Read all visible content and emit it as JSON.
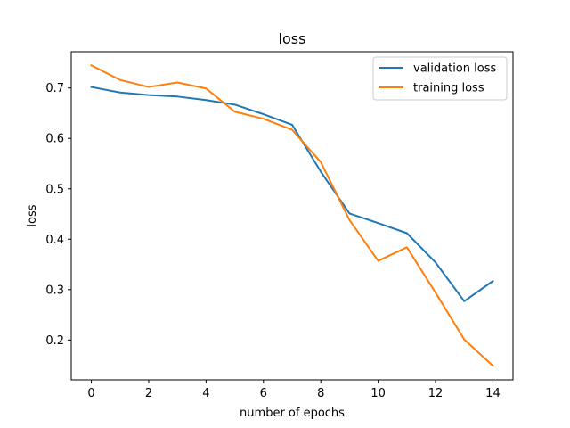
{
  "chart_data": {
    "type": "line",
    "title": "loss",
    "xlabel": "number of epochs",
    "ylabel": "loss",
    "x": [
      0,
      1,
      2,
      3,
      4,
      5,
      6,
      7,
      8,
      9,
      10,
      11,
      12,
      13,
      14
    ],
    "x_ticks": [
      0,
      2,
      4,
      6,
      8,
      10,
      12,
      14
    ],
    "y_ticks": [
      0.2,
      0.3,
      0.4,
      0.5,
      0.6,
      0.7
    ],
    "xlim": [
      -0.7,
      14.7
    ],
    "ylim": [
      0.121,
      0.772
    ],
    "grid": false,
    "legend_position": "upper right",
    "series": [
      {
        "name": "validation loss",
        "color": "#1f77b4",
        "values": [
          0.702,
          0.691,
          0.686,
          0.683,
          0.676,
          0.667,
          0.648,
          0.627,
          0.534,
          0.451,
          0.432,
          0.412,
          0.354,
          0.277,
          0.317
        ]
      },
      {
        "name": "training loss",
        "color": "#ff7f0e",
        "values": [
          0.745,
          0.716,
          0.702,
          0.711,
          0.699,
          0.653,
          0.639,
          0.617,
          0.553,
          0.438,
          0.357,
          0.384,
          0.294,
          0.201,
          0.149
        ]
      }
    ]
  }
}
